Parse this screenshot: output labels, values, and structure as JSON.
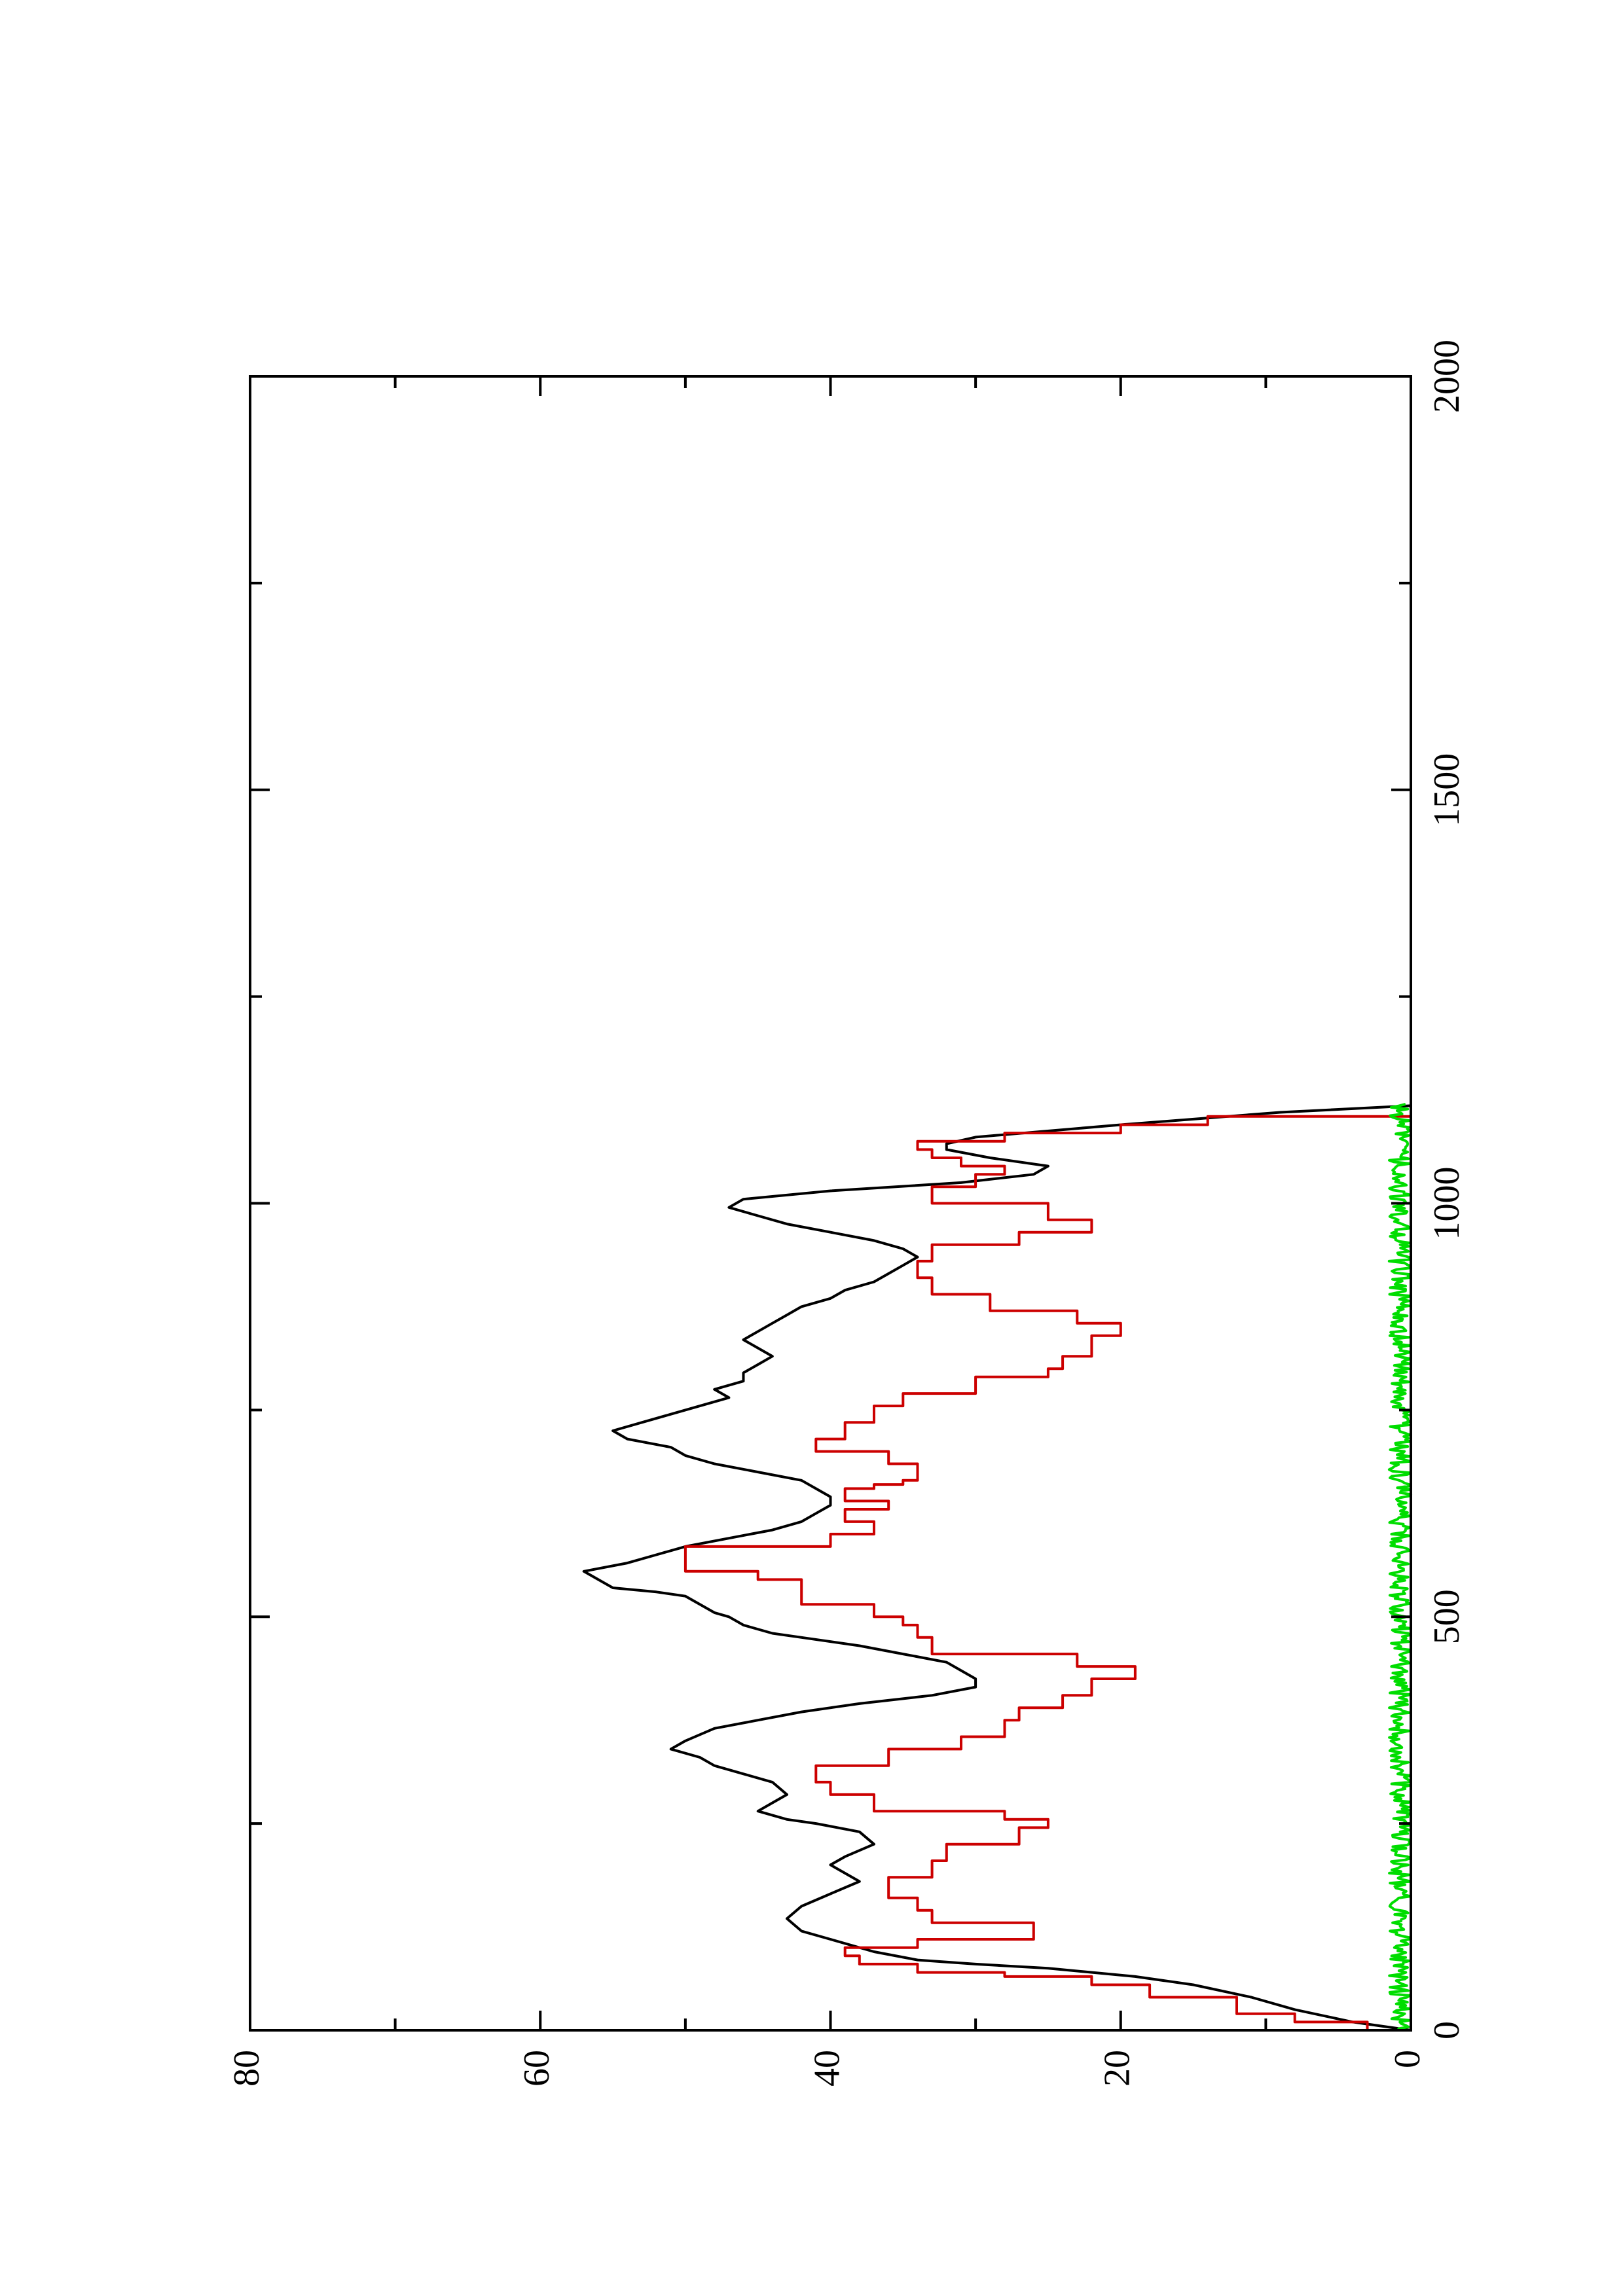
{
  "chart_data": {
    "type": "line",
    "orientation": "rotated-90-ccw",
    "xlim": [
      0,
      2000
    ],
    "ylim": [
      0,
      80
    ],
    "x_ticks": [
      0,
      500,
      1000,
      1500,
      2000
    ],
    "x_tick_labels": [
      "0",
      "500",
      "1000",
      "1500",
      "2000"
    ],
    "x_minor_ticks": [
      250,
      750,
      1250,
      1750
    ],
    "y_ticks": [
      0,
      20,
      40,
      60,
      80
    ],
    "y_tick_labels": [
      "0",
      "20",
      "40",
      "60",
      "80"
    ],
    "y_minor_ticks": [
      10,
      30,
      50,
      70
    ],
    "title": "",
    "xlabel": "",
    "ylabel": "",
    "grid": false,
    "series": [
      {
        "color": "#000000",
        "style": "line",
        "points": [
          [
            0,
            0
          ],
          [
            10,
            4
          ],
          [
            25,
            8
          ],
          [
            40,
            11
          ],
          [
            55,
            15
          ],
          [
            65,
            19
          ],
          [
            75,
            25
          ],
          [
            80,
            30
          ],
          [
            85,
            34
          ],
          [
            95,
            37
          ],
          [
            110,
            40
          ],
          [
            120,
            42
          ],
          [
            135,
            43
          ],
          [
            150,
            42
          ],
          [
            165,
            40
          ],
          [
            180,
            38
          ],
          [
            200,
            40
          ],
          [
            210,
            39
          ],
          [
            225,
            37
          ],
          [
            240,
            38
          ],
          [
            250,
            41
          ],
          [
            255,
            43
          ],
          [
            265,
            45
          ],
          [
            275,
            44
          ],
          [
            285,
            43
          ],
          [
            300,
            44
          ],
          [
            310,
            46
          ],
          [
            320,
            48
          ],
          [
            330,
            49
          ],
          [
            340,
            51
          ],
          [
            350,
            50
          ],
          [
            365,
            48
          ],
          [
            375,
            45
          ],
          [
            385,
            42
          ],
          [
            395,
            38
          ],
          [
            405,
            33
          ],
          [
            415,
            30
          ],
          [
            425,
            30
          ],
          [
            435,
            31
          ],
          [
            445,
            32
          ],
          [
            455,
            35
          ],
          [
            465,
            38
          ],
          [
            475,
            42
          ],
          [
            480,
            44
          ],
          [
            490,
            46
          ],
          [
            500,
            47
          ],
          [
            505,
            48
          ],
          [
            515,
            49
          ],
          [
            525,
            50
          ],
          [
            530,
            52
          ],
          [
            535,
            55
          ],
          [
            545,
            56
          ],
          [
            555,
            57
          ],
          [
            565,
            54
          ],
          [
            575,
            52
          ],
          [
            585,
            50
          ],
          [
            595,
            47
          ],
          [
            605,
            44
          ],
          [
            615,
            42
          ],
          [
            625,
            41
          ],
          [
            635,
            40
          ],
          [
            645,
            40
          ],
          [
            655,
            41
          ],
          [
            665,
            42
          ],
          [
            675,
            45
          ],
          [
            685,
            48
          ],
          [
            695,
            50
          ],
          [
            705,
            51
          ],
          [
            715,
            54
          ],
          [
            725,
            55
          ],
          [
            735,
            53
          ],
          [
            745,
            51
          ],
          [
            755,
            49
          ],
          [
            765,
            47
          ],
          [
            775,
            48
          ],
          [
            785,
            46
          ],
          [
            795,
            46
          ],
          [
            805,
            45
          ],
          [
            815,
            44
          ],
          [
            825,
            45
          ],
          [
            835,
            46
          ],
          [
            845,
            45
          ],
          [
            855,
            44
          ],
          [
            865,
            43
          ],
          [
            875,
            42
          ],
          [
            885,
            40
          ],
          [
            895,
            39
          ],
          [
            905,
            37
          ],
          [
            915,
            36
          ],
          [
            925,
            35
          ],
          [
            935,
            34
          ],
          [
            945,
            35
          ],
          [
            955,
            37
          ],
          [
            965,
            40
          ],
          [
            975,
            43
          ],
          [
            985,
            45
          ],
          [
            995,
            47
          ],
          [
            1005,
            46
          ],
          [
            1015,
            40
          ],
          [
            1025,
            31
          ],
          [
            1035,
            26
          ],
          [
            1045,
            25
          ],
          [
            1055,
            29
          ],
          [
            1065,
            32
          ],
          [
            1072,
            32
          ],
          [
            1080,
            30
          ],
          [
            1095,
            20
          ],
          [
            1110,
            9
          ],
          [
            1118,
            0
          ]
        ]
      },
      {
        "color": "#cc0000",
        "style": "step",
        "points": [
          [
            0,
            0
          ],
          [
            10,
            3
          ],
          [
            20,
            8
          ],
          [
            40,
            12
          ],
          [
            55,
            18
          ],
          [
            65,
            22
          ],
          [
            70,
            28
          ],
          [
            80,
            34
          ],
          [
            90,
            38
          ],
          [
            100,
            39
          ],
          [
            110,
            34
          ],
          [
            130,
            26
          ],
          [
            145,
            33
          ],
          [
            160,
            34
          ],
          [
            185,
            36
          ],
          [
            205,
            33
          ],
          [
            225,
            32
          ],
          [
            245,
            27
          ],
          [
            255,
            25
          ],
          [
            265,
            28
          ],
          [
            285,
            37
          ],
          [
            300,
            40
          ],
          [
            320,
            41
          ],
          [
            340,
            36
          ],
          [
            355,
            31
          ],
          [
            375,
            28
          ],
          [
            390,
            27
          ],
          [
            405,
            24
          ],
          [
            425,
            22
          ],
          [
            440,
            19
          ],
          [
            455,
            23
          ],
          [
            475,
            33
          ],
          [
            490,
            34
          ],
          [
            500,
            35
          ],
          [
            515,
            37
          ],
          [
            530,
            42
          ],
          [
            545,
            42
          ],
          [
            555,
            45
          ],
          [
            575,
            50
          ],
          [
            585,
            50
          ],
          [
            600,
            40
          ],
          [
            615,
            37
          ],
          [
            630,
            39
          ],
          [
            640,
            36
          ],
          [
            655,
            39
          ],
          [
            660,
            37
          ],
          [
            665,
            35
          ],
          [
            685,
            34
          ],
          [
            700,
            36
          ],
          [
            715,
            41
          ],
          [
            735,
            39
          ],
          [
            755,
            37
          ],
          [
            770,
            35
          ],
          [
            790,
            30
          ],
          [
            800,
            25
          ],
          [
            815,
            24
          ],
          [
            840,
            22
          ],
          [
            855,
            20
          ],
          [
            870,
            23
          ],
          [
            890,
            29
          ],
          [
            910,
            33
          ],
          [
            930,
            34
          ],
          [
            950,
            33
          ],
          [
            965,
            27
          ],
          [
            980,
            22
          ],
          [
            1000,
            25
          ],
          [
            1020,
            33
          ],
          [
            1035,
            30
          ],
          [
            1045,
            28
          ],
          [
            1055,
            31
          ],
          [
            1065,
            33
          ],
          [
            1075,
            34
          ],
          [
            1085,
            28
          ],
          [
            1095,
            20
          ],
          [
            1105,
            14
          ],
          [
            1118,
            0
          ]
        ]
      },
      {
        "color": "#00dd00",
        "style": "noise",
        "x_range": [
          0,
          1120
        ],
        "y_range": [
          0,
          1.5
        ]
      }
    ]
  }
}
